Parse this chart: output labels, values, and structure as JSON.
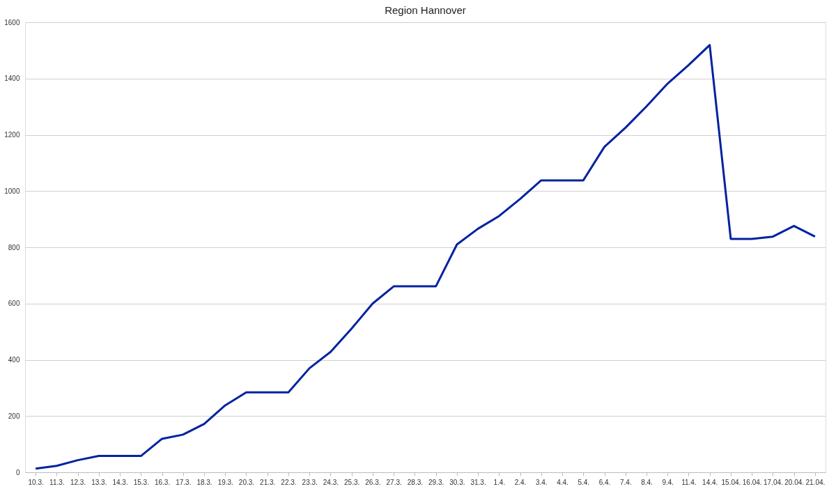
{
  "chart_data": {
    "type": "line",
    "title": "Region Hannover",
    "categories": [
      "10.3.",
      "11.3.",
      "12.3.",
      "13.3.",
      "14.3.",
      "15.3.",
      "16.3.",
      "17.3.",
      "18.3.",
      "19.3.",
      "20.3.",
      "21.3.",
      "22.3.",
      "23.3.",
      "24.3.",
      "25.3.",
      "26.3.",
      "27.3.",
      "28.3.",
      "29.3.",
      "30.3.",
      "31.3.",
      "1.4.",
      "2.4.",
      "3.4.",
      "4.4.",
      "5.4.",
      "6.4.",
      "7.4.",
      "8.4.",
      "9.4.",
      "11.4.",
      "14.4.",
      "15.04.",
      "16.04.",
      "17.04.",
      "20.04.",
      "21.04."
    ],
    "series": [
      {
        "color": "#0022a0",
        "values": [
          13,
          23,
          43,
          58,
          58,
          58,
          119,
          134,
          172,
          238,
          284,
          284,
          284,
          370,
          428,
          511,
          600,
          661,
          661,
          661,
          810,
          866,
          911,
          972,
          1038,
          1038,
          1038,
          1157,
          1225,
          1301,
          1382,
          1448,
          1519,
          830,
          830,
          838,
          876,
          838
        ]
      }
    ],
    "ylim": [
      0,
      1600
    ],
    "yticks": [
      0,
      200,
      400,
      600,
      800,
      1000,
      1200,
      1400,
      1600
    ],
    "grid": "y",
    "legend": false,
    "marker": "none",
    "line_style": "solid"
  }
}
